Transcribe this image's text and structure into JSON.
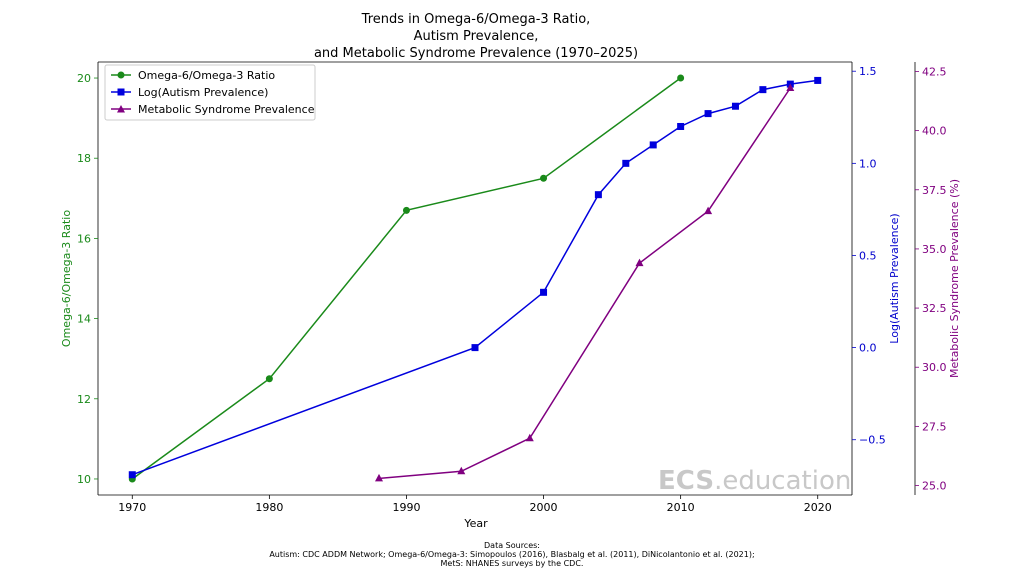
{
  "chart_data": {
    "type": "line",
    "title": [
      "Trends in Omega-6/Omega-3 Ratio,",
      "Autism Prevalence,",
      "and Metabolic Syndrome Prevalence (1970–2025)"
    ],
    "xlabel": "Year",
    "xlim": [
      1967.5,
      2022.5
    ],
    "xticks": [
      1970,
      1980,
      1990,
      2000,
      2010,
      2020
    ],
    "axes": [
      {
        "id": "left",
        "label": "Omega-6/Omega-3 Ratio",
        "color": "#1a8a1a",
        "ylim": [
          9.6,
          20.4
        ],
        "ticks": [
          10,
          12,
          14,
          16,
          18,
          20
        ],
        "tick_labels": [
          "10",
          "12",
          "14",
          "16",
          "18",
          "20"
        ]
      },
      {
        "id": "right1",
        "label": "Log(Autism Prevalence)",
        "color": "#0000cc",
        "ylim": [
          -0.8,
          1.55
        ],
        "ticks": [
          -0.5,
          0.0,
          0.5,
          1.0,
          1.5
        ],
        "tick_labels": [
          "−0.5",
          "0.0",
          "0.5",
          "1.0",
          "1.5"
        ]
      },
      {
        "id": "right2",
        "label": "Metabolic Syndrome Prevalence (%)",
        "color": "#800080",
        "ylim": [
          24.6,
          42.9
        ],
        "ticks": [
          25.0,
          27.5,
          30.0,
          32.5,
          35.0,
          37.5,
          40.0,
          42.5
        ],
        "tick_labels": [
          "25.0",
          "27.5",
          "30.0",
          "32.5",
          "35.0",
          "37.5",
          "40.0",
          "42.5"
        ]
      }
    ],
    "series": [
      {
        "name": "Omega-6/Omega-3 Ratio",
        "axis": "left",
        "color": "#1a8a1a",
        "marker": "circle",
        "x": [
          1970,
          1980,
          1990,
          2000,
          2010
        ],
        "y": [
          10.0,
          12.5,
          16.7,
          17.5,
          20.0
        ]
      },
      {
        "name": "Log(Autism Prevalence)",
        "axis": "right1",
        "color": "#0000dd",
        "marker": "square",
        "x": [
          1970,
          1995,
          2000,
          2004,
          2006,
          2008,
          2010,
          2012,
          2014,
          2016,
          2018,
          2020
        ],
        "y": [
          -0.69,
          0.0,
          0.3,
          0.83,
          1.0,
          1.1,
          1.2,
          1.27,
          1.31,
          1.4,
          1.43,
          1.45
        ]
      },
      {
        "name": "Metabolic Syndrome Prevalence",
        "axis": "right2",
        "color": "#800080",
        "marker": "triangle",
        "x": [
          1988,
          1994,
          1999,
          2007,
          2012,
          2018
        ],
        "y": [
          25.3,
          25.6,
          27.0,
          34.4,
          36.6,
          41.8
        ]
      }
    ],
    "legend": {
      "position": "top-left",
      "entries": [
        "Omega-6/Omega-3 Ratio",
        "Log(Autism Prevalence)",
        "Metabolic Syndrome Prevalence"
      ]
    },
    "grid": false
  },
  "watermark": {
    "bold": "ECS",
    "rest": ".education"
  },
  "sources": [
    "Data Sources:",
    "Autism: CDC ADDM Network; Omega-6/Omega-3: Simopoulos (2016), Blasbalg et al. (2011), DiNicolantonio et al. (2021);",
    "MetS: NHANES surveys by the CDC."
  ]
}
